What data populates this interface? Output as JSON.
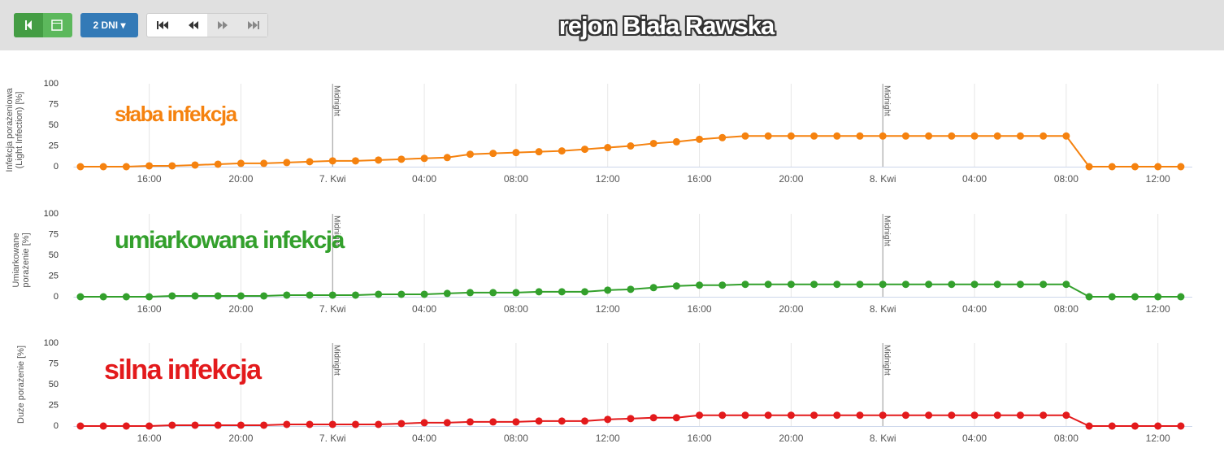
{
  "toolbar": {
    "range_button": "2 DNI",
    "title": "rejon Biała Rawska"
  },
  "chart_data": [
    {
      "type": "line",
      "annotation": "słaba infekcja",
      "y_label": "Infekcja porażeniowa (Light Infection) [%]",
      "plot_line_label": "Midnight",
      "plot_lines": [
        11,
        35
      ],
      "x": [
        0,
        1,
        2,
        3,
        4,
        5,
        6,
        7,
        8,
        9,
        10,
        11,
        12,
        13,
        14,
        15,
        16,
        17,
        18,
        19,
        20,
        21,
        22,
        23,
        24,
        25,
        26,
        27,
        28,
        29,
        30,
        31,
        32,
        33,
        34,
        35,
        36,
        37,
        38,
        39,
        40,
        41,
        42,
        43,
        44,
        45,
        46,
        47,
        48
      ],
      "series": [
        {
          "name": "Infekcja porażeniowa",
          "color": "#f5820f",
          "values": [
            0,
            0,
            0,
            1,
            1,
            2,
            3,
            4,
            4,
            5,
            6,
            7,
            7,
            8,
            9,
            10,
            11,
            15,
            16,
            17,
            18,
            19,
            21,
            23,
            25,
            28,
            30,
            33,
            35,
            37,
            37,
            37,
            37,
            37,
            37,
            37,
            37,
            37,
            37,
            37,
            37,
            37,
            37,
            37,
            0,
            0,
            0,
            0,
            0
          ]
        }
      ],
      "xlim": [
        -0.3,
        48.5
      ],
      "xticks": [
        {
          "value": 3,
          "label": "16:00"
        },
        {
          "value": 7,
          "label": "20:00"
        },
        {
          "value": 11,
          "label": "7. Kwi"
        },
        {
          "value": 15,
          "label": "04:00"
        },
        {
          "value": 19,
          "label": "08:00"
        },
        {
          "value": 23,
          "label": "12:00"
        },
        {
          "value": 27,
          "label": "16:00"
        },
        {
          "value": 31,
          "label": "20:00"
        },
        {
          "value": 35,
          "label": "8. Kwi"
        },
        {
          "value": 39,
          "label": "04:00"
        },
        {
          "value": 43,
          "label": "08:00"
        },
        {
          "value": 47,
          "label": "12:00"
        }
      ],
      "ylim": [
        0,
        100
      ],
      "yticks": [
        0,
        25,
        50,
        75,
        100
      ],
      "grid": true
    },
    {
      "type": "line",
      "annotation": "umiarkowana infekcja",
      "y_label": "Umiarkowane porażenie [%]",
      "plot_line_label": "Midnight",
      "plot_lines": [
        11,
        35
      ],
      "x": [
        0,
        1,
        2,
        3,
        4,
        5,
        6,
        7,
        8,
        9,
        10,
        11,
        12,
        13,
        14,
        15,
        16,
        17,
        18,
        19,
        20,
        21,
        22,
        23,
        24,
        25,
        26,
        27,
        28,
        29,
        30,
        31,
        32,
        33,
        34,
        35,
        36,
        37,
        38,
        39,
        40,
        41,
        42,
        43,
        44,
        45,
        46,
        47,
        48
      ],
      "series": [
        {
          "name": "Umiarkowane porażenie",
          "color": "#33a02c",
          "values": [
            0,
            0,
            0,
            0,
            1,
            1,
            1,
            1,
            1,
            2,
            2,
            2,
            2,
            3,
            3,
            3,
            4,
            5,
            5,
            5,
            6,
            6,
            6,
            8,
            9,
            11,
            13,
            14,
            14,
            15,
            15,
            15,
            15,
            15,
            15,
            15,
            15,
            15,
            15,
            15,
            15,
            15,
            15,
            15,
            0,
            0,
            0,
            0,
            0
          ]
        }
      ],
      "xlim": [
        -0.3,
        48.5
      ],
      "xticks": [
        {
          "value": 3,
          "label": "16:00"
        },
        {
          "value": 7,
          "label": "20:00"
        },
        {
          "value": 11,
          "label": "7. Kwi"
        },
        {
          "value": 15,
          "label": "04:00"
        },
        {
          "value": 19,
          "label": "08:00"
        },
        {
          "value": 23,
          "label": "12:00"
        },
        {
          "value": 27,
          "label": "16:00"
        },
        {
          "value": 31,
          "label": "20:00"
        },
        {
          "value": 35,
          "label": "8. Kwi"
        },
        {
          "value": 39,
          "label": "04:00"
        },
        {
          "value": 43,
          "label": "08:00"
        },
        {
          "value": 47,
          "label": "12:00"
        }
      ],
      "ylim": [
        0,
        100
      ],
      "yticks": [
        0,
        25,
        50,
        75,
        100
      ],
      "grid": true
    },
    {
      "type": "line",
      "annotation": "silna infekcja",
      "y_label": "Duże porażenie [%]",
      "plot_line_label": "Midnight",
      "plot_lines": [
        11,
        35
      ],
      "x": [
        0,
        1,
        2,
        3,
        4,
        5,
        6,
        7,
        8,
        9,
        10,
        11,
        12,
        13,
        14,
        15,
        16,
        17,
        18,
        19,
        20,
        21,
        22,
        23,
        24,
        25,
        26,
        27,
        28,
        29,
        30,
        31,
        32,
        33,
        34,
        35,
        36,
        37,
        38,
        39,
        40,
        41,
        42,
        43,
        44,
        45,
        46,
        47,
        48
      ],
      "series": [
        {
          "name": "Duże porażenie",
          "color": "#e31a1c",
          "values": [
            0,
            0,
            0,
            0,
            1,
            1,
            1,
            1,
            1,
            2,
            2,
            2,
            2,
            2,
            3,
            4,
            4,
            5,
            5,
            5,
            6,
            6,
            6,
            8,
            9,
            10,
            10,
            13,
            13,
            13,
            13,
            13,
            13,
            13,
            13,
            13,
            13,
            13,
            13,
            13,
            13,
            13,
            13,
            13,
            0,
            0,
            0,
            0,
            0
          ]
        }
      ],
      "xlim": [
        -0.3,
        48.5
      ],
      "xticks": [
        {
          "value": 3,
          "label": "16:00"
        },
        {
          "value": 7,
          "label": "20:00"
        },
        {
          "value": 11,
          "label": "7. Kwi"
        },
        {
          "value": 15,
          "label": "04:00"
        },
        {
          "value": 19,
          "label": "08:00"
        },
        {
          "value": 23,
          "label": "12:00"
        },
        {
          "value": 27,
          "label": "16:00"
        },
        {
          "value": 31,
          "label": "20:00"
        },
        {
          "value": 35,
          "label": "8. Kwi"
        },
        {
          "value": 39,
          "label": "04:00"
        },
        {
          "value": 43,
          "label": "08:00"
        },
        {
          "value": 47,
          "label": "12:00"
        }
      ],
      "ylim": [
        0,
        100
      ],
      "yticks": [
        0,
        25,
        50,
        75,
        100
      ],
      "grid": true
    }
  ]
}
